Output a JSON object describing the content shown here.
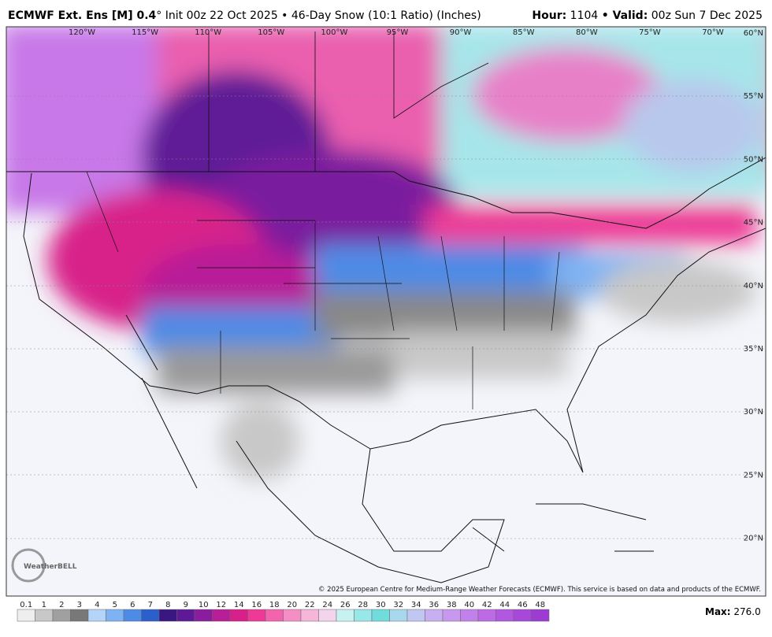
{
  "header": {
    "title_bold": "ECMWF Ext. Ens [M] 0.4",
    "title_rest": "° Init 00z 22 Oct 2025 • 46-Day Snow (10:1 Ratio) (Inches)",
    "hour_label": "Hour:",
    "hour": "1104",
    "valid_label": "• Valid:",
    "valid": "00z Sun 7 Dec 2025"
  },
  "map": {
    "lon_labels": [
      "120°W",
      "115°W",
      "110°W",
      "105°W",
      "100°W",
      "95°W",
      "90°W",
      "85°W",
      "80°W",
      "75°W",
      "70°W"
    ],
    "lat_labels": [
      "60°N",
      "55°N",
      "50°N",
      "45°N",
      "40°N",
      "35°N",
      "30°N",
      "25°N",
      "20°N"
    ],
    "logo": "WeatherBELL",
    "copyright": "© 2025 European Centre for Medium-Range Weather Forecasts (ECMWF). This service is based on data and products of the ECMWF."
  },
  "legend": {
    "labels": [
      "0.1",
      "1",
      "2",
      "3",
      "4",
      "5",
      "6",
      "7",
      "8",
      "9",
      "10",
      "12",
      "14",
      "16",
      "18",
      "20",
      "22",
      "24",
      "26",
      "28",
      "30",
      "32",
      "34",
      "36",
      "38",
      "40",
      "42",
      "44",
      "46",
      "48"
    ],
    "colors": [
      "#eeeeee",
      "#c8c8c8",
      "#a0a0a0",
      "#787878",
      "#b4d4f8",
      "#7fb2f2",
      "#4d8be6",
      "#2a5fcc",
      "#3a1680",
      "#5e1a96",
      "#8a1c9e",
      "#b81e98",
      "#d8208a",
      "#ee3a96",
      "#f264ae",
      "#f48ec4",
      "#f6b6da",
      "#f2d4ec",
      "#c8f2f2",
      "#98e8ea",
      "#70dcdc",
      "#a8d8ee",
      "#c0c8f2",
      "#c8b0f0",
      "#c898ee",
      "#c280ea",
      "#bc6ae6",
      "#b058e0",
      "#a848da",
      "#9c3cd2"
    ],
    "max_label": "Max:",
    "max": "276.0"
  }
}
